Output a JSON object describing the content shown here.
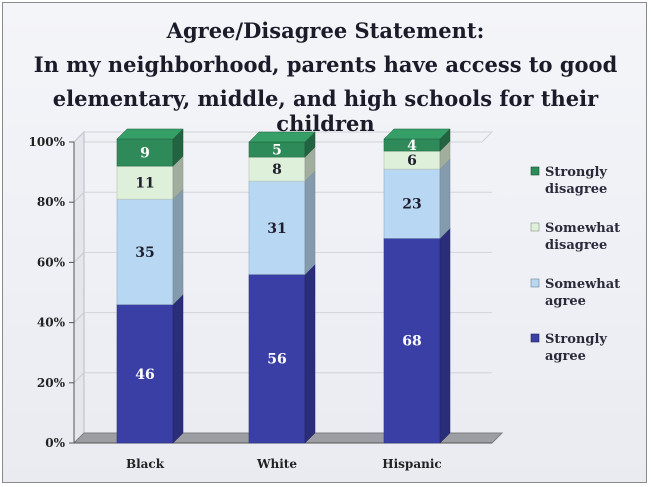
{
  "title_lines": [
    "Agree/Disagree Statement:",
    "In my neighborhood, parents have access to good",
    "elementary, middle, and high schools for their children"
  ],
  "colors": {
    "strongly_disagree": "#2f8a5a",
    "somewhat_disagree": "#dff0da",
    "somewhat_agree": "#b8d7f2",
    "strongly_agree": "#3a3fa6"
  },
  "chart_data": {
    "type": "bar",
    "stacked": true,
    "percent": true,
    "categories": [
      "Black",
      "White",
      "Hispanic"
    ],
    "yticks": [
      "0%",
      "20%",
      "40%",
      "60%",
      "80%",
      "100%"
    ],
    "ylim": [
      0,
      100
    ],
    "legend_position": "right",
    "series": [
      {
        "name": "Strongly agree",
        "legend": [
          "Strongly",
          "agree"
        ],
        "values": [
          46,
          56,
          68
        ],
        "color_key": "strongly_agree"
      },
      {
        "name": "Somewhat agree",
        "legend": [
          "Somewhat",
          "agree"
        ],
        "values": [
          35,
          31,
          23
        ],
        "color_key": "somewhat_agree"
      },
      {
        "name": "Somewhat disagree",
        "legend": [
          "Somewhat",
          "disagree"
        ],
        "values": [
          11,
          8,
          6
        ],
        "color_key": "somewhat_disagree"
      },
      {
        "name": "Strongly disagree",
        "legend": [
          "Strongly",
          "disagree"
        ],
        "values": [
          9,
          5,
          4
        ],
        "color_key": "strongly_disagree"
      }
    ]
  }
}
